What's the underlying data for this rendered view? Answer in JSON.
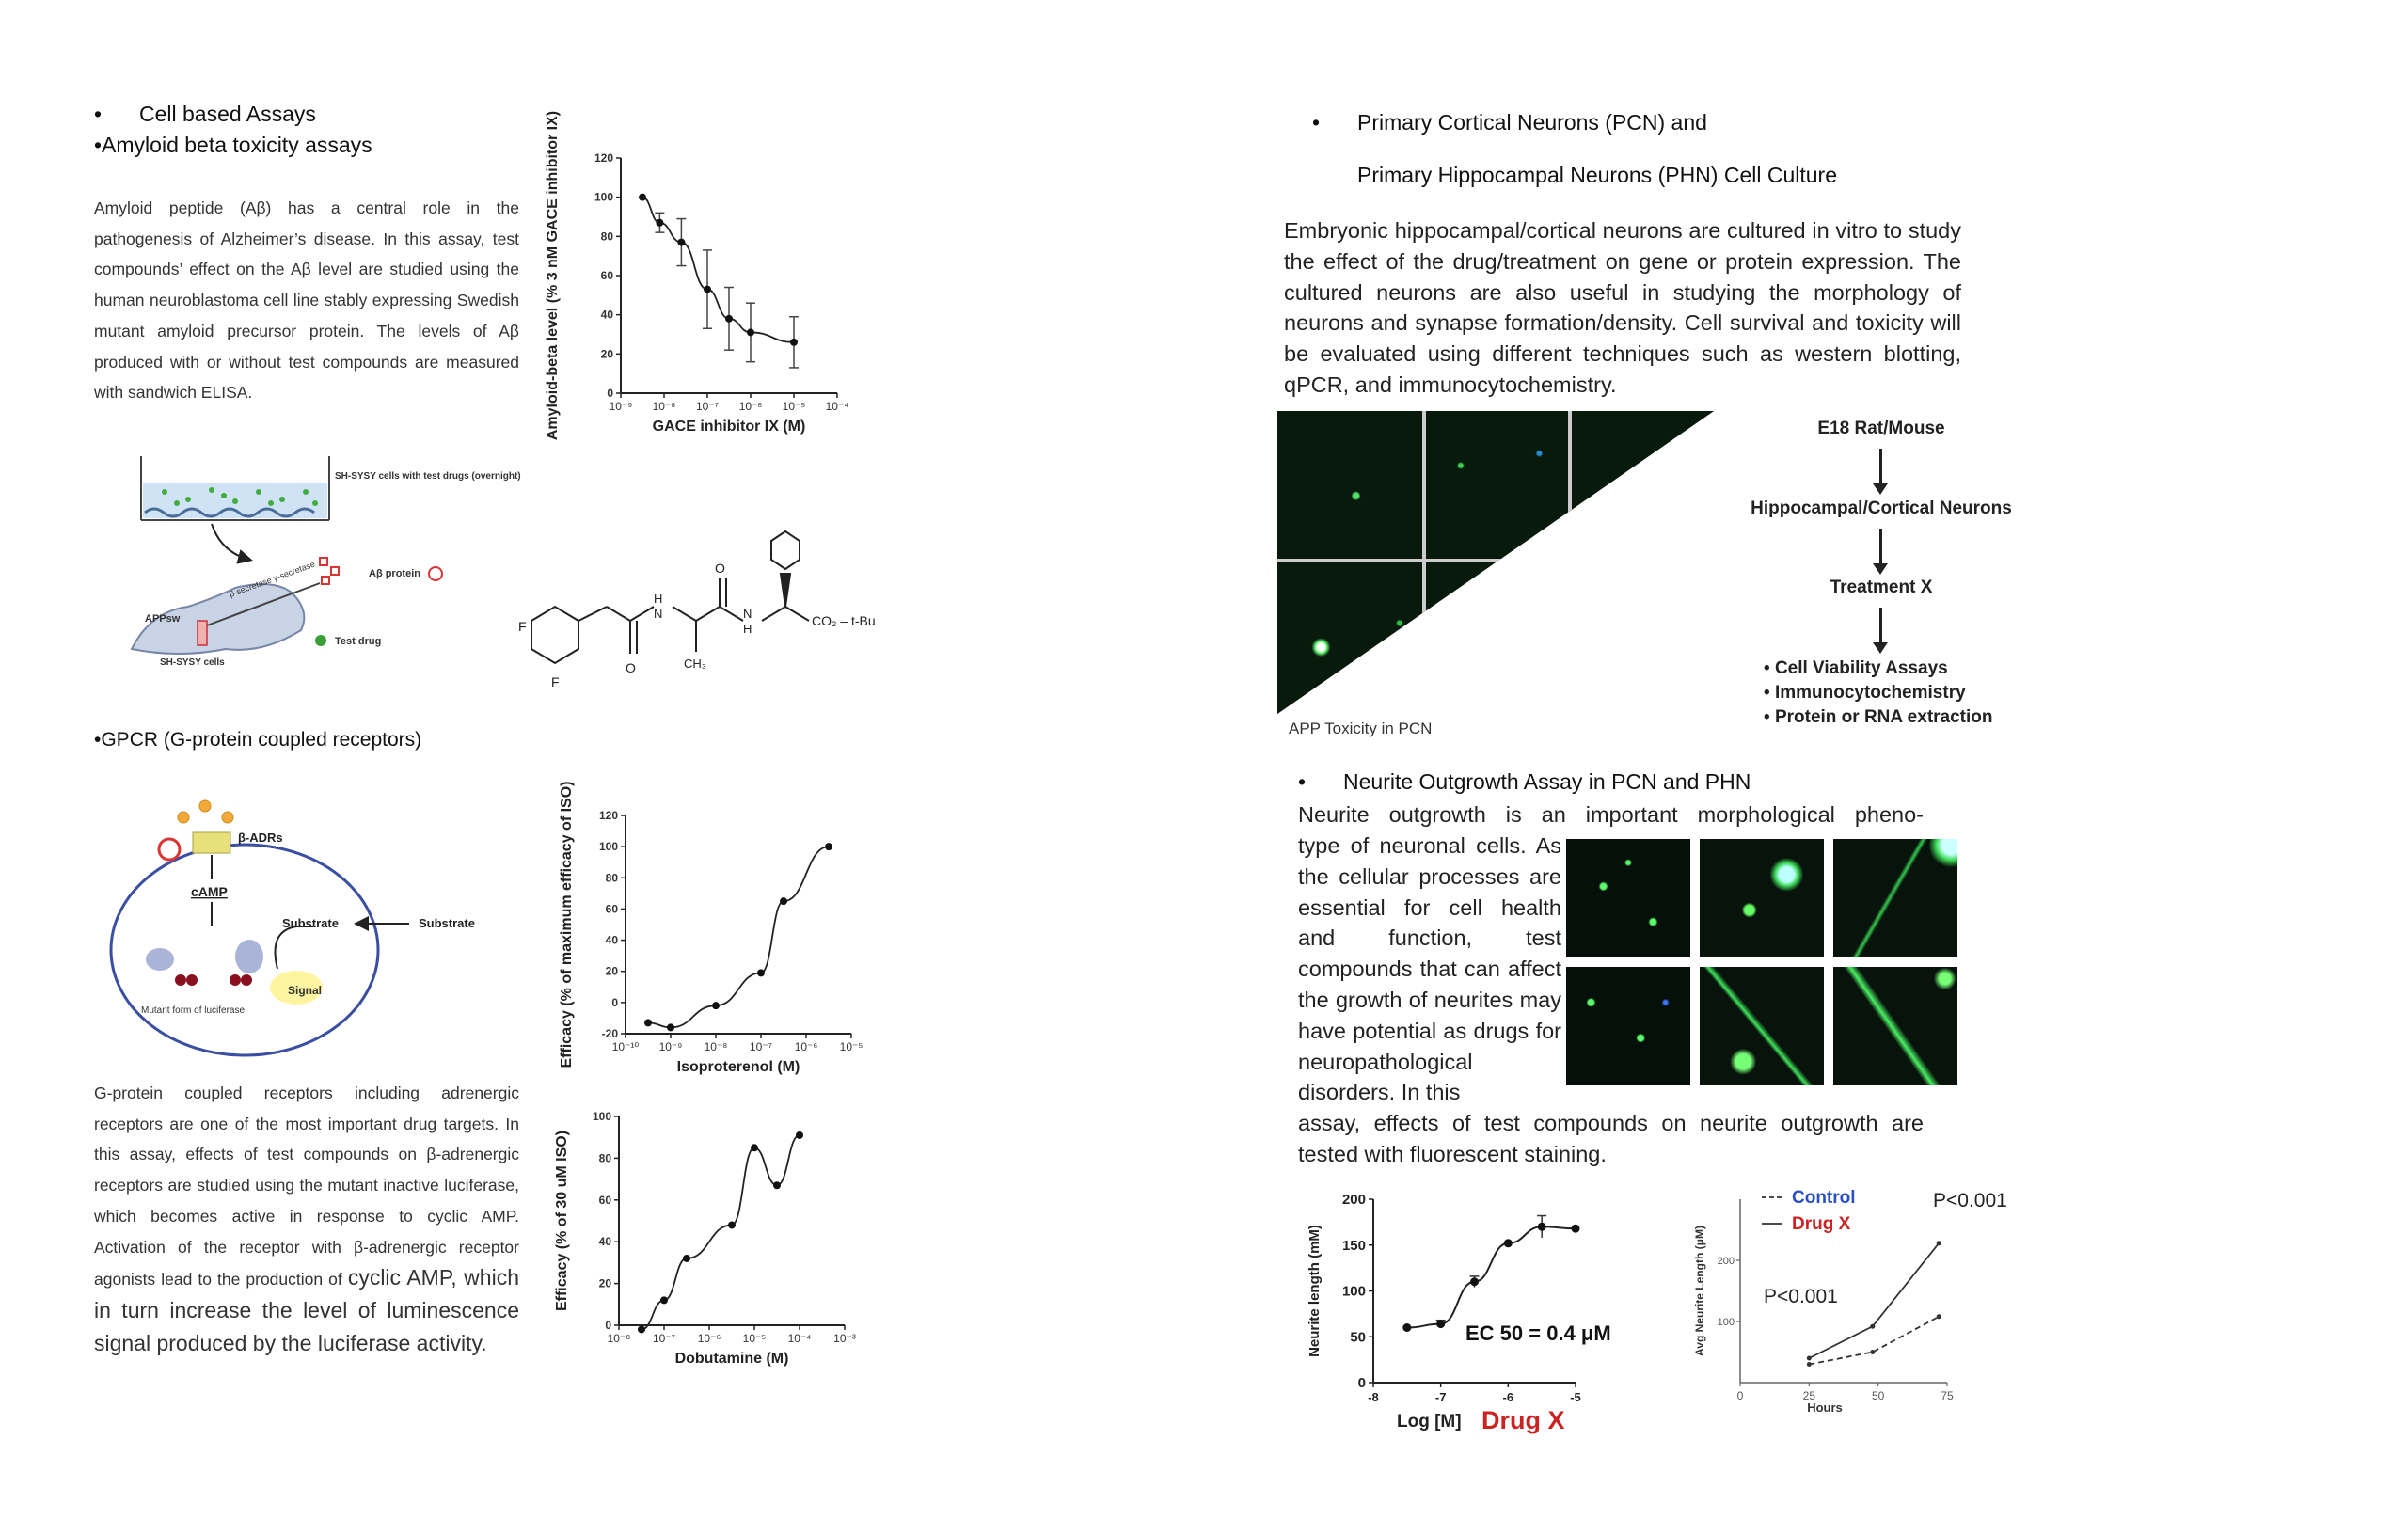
{
  "left": {
    "bullet1": "Cell based Assays",
    "bullet2": "•Amyloid beta toxicity assays",
    "amyloid_para": "Amyloid peptide (Aβ) has a central role in the pathogenesis of Alzheimer’s disease. In this assay, test compounds’ effect on the Aβ level are studied using the human neuroblastoma cell line stably expressing Swedish mutant amyloid precursor protein. The levels of Aβ produced with or without test compounds are measured with sandwich ELISA.",
    "gpcr_heading": "•GPCR (G-protein coupled receptors)",
    "gpcr_para_small": "G-protein coupled receptors including adrenergic receptors are one of the most important drug targets. In this assay, effects of test compounds on β-adrenergic receptors are studied using the mutant inactive luciferase, which becomes active in response to cyclic AMP. Activation of the receptor with β-adrenergic receptor agonists lead to the production of",
    "gpcr_para_large": "cyclic AMP, which in turn increase the level of luminescence signal produced by the luciferase activity."
  },
  "amyloid_diagram": {
    "cells_label": "SH-SYSY cells with test drugs (overnight)",
    "ab_protein": "Aβ protein",
    "secretase": "β-secretase γ-secretase",
    "appsw": "APPsw",
    "test_drug": "Test drug",
    "cell_name": "SH-SYSY cells"
  },
  "structure": {
    "f1": "F",
    "f2": "F",
    "nh1": "H\nN",
    "o1": "O",
    "ch3": "CH₃",
    "o2": "O",
    "nh2": "N\nH",
    "ester": "CO₂ – t-Bu"
  },
  "gpcr_diagram": {
    "receptor": "β-ADRs",
    "camp": "cAMP",
    "substrate_in": "Substrate",
    "substrate_out": "Substrate",
    "signal": "Signal",
    "luciferase": "Mutant form of luciferase"
  },
  "right": {
    "pcn_line1": "Primary Cortical Neurons (PCN) and",
    "pcn_line2": "Primary Hippocampal Neurons (PHN) Cell Culture",
    "pcn_para": "Embryonic hippocampal/cortical neurons are cultured in vitro to study the effect of the drug/treatment on gene or protein expression. The cultured neurons are also useful in studying the morphology of neurons and synapse formation/density. Cell survival and toxicity will be evaluated using different techniques such as western blotting, qPCR, and immunocytochemistry.",
    "micro_caption": "APP Toxicity in PCN",
    "flow": [
      "E18 Rat/Mouse",
      "Hippocampal/Cortical Neurons",
      "Treatment X"
    ],
    "flow_bullets": [
      "Cell Viability Assays",
      "Immunocytochemistry",
      "Protein or RNA extraction"
    ],
    "neurite_heading": "Neurite Outgrowth Assay in PCN and PHN",
    "neurite_para_top": "Neurite outgrowth is an important morphological pheno-",
    "neurite_para_side": "type of neuronal cells. As the cellular processes are essential for cell health and function, test compounds that can affect the growth of neurites may have potential as drugs for neuropathological disorders. In this",
    "neurite_para_bottom": "assay, effects of test compounds on neurite outgrowth are tested with fluorescent staining."
  },
  "chart_data": [
    {
      "type": "scatter",
      "name": "amyloid",
      "xlabel": "GACE inhibitor IX (M)",
      "ylabel": "Amyloid-beta level (% 3 nM GACE inhibitor IX)",
      "xscale": "log",
      "xlim": [
        -9,
        -4
      ],
      "ylim": [
        0,
        120
      ],
      "yticks": [
        "0",
        "20",
        "40",
        "60",
        "80",
        "100",
        "120"
      ],
      "xticks": [
        "10⁻⁹",
        "10⁻⁸",
        "10⁻⁷",
        "10⁻⁶",
        "10⁻⁵",
        "10⁻⁴"
      ],
      "x": [
        -8.5,
        -8.1,
        -7.6,
        -7.0,
        -6.5,
        -6.0,
        -5.0
      ],
      "y": [
        100,
        87,
        77,
        53,
        38,
        31,
        26
      ],
      "err": [
        0,
        5,
        12,
        20,
        16,
        15,
        13
      ],
      "grid": false
    },
    {
      "type": "scatter",
      "name": "isoproterenol",
      "xlabel": "Isoproterenol (M)",
      "ylabel": "Efficacy (% of maximum efficacy of ISO)",
      "xscale": "log",
      "xlim": [
        -10,
        -5
      ],
      "ylim": [
        -20,
        120
      ],
      "yticks": [
        "-20",
        "0",
        "20",
        "40",
        "60",
        "80",
        "100",
        "120"
      ],
      "xticks": [
        "10⁻¹⁰",
        "10⁻⁹",
        "10⁻⁸",
        "10⁻⁷",
        "10⁻⁶",
        "10⁻⁵"
      ],
      "x": [
        -9.5,
        -9.0,
        -8.0,
        -7.0,
        -6.5,
        -5.5
      ],
      "y": [
        -13,
        -16,
        -2,
        19,
        65,
        100
      ],
      "grid": false
    },
    {
      "type": "scatter",
      "name": "dobutamine",
      "xlabel": "Dobutamine (M)",
      "ylabel": "Efficacy (% of 30 uM ISO)",
      "xscale": "log",
      "xlim": [
        -8,
        -3
      ],
      "ylim": [
        0,
        100
      ],
      "yticks": [
        "0",
        "20",
        "40",
        "60",
        "80",
        "100"
      ],
      "xticks": [
        "10⁻⁸",
        "10⁻⁷",
        "10⁻⁶",
        "10⁻⁵",
        "10⁻⁴",
        "10⁻³"
      ],
      "x": [
        -7.5,
        -7.0,
        -6.5,
        -5.5,
        -5.0,
        -4.5,
        -4.0
      ],
      "y": [
        -2,
        12,
        32,
        48,
        85,
        67,
        91
      ],
      "grid": false
    },
    {
      "type": "scatter",
      "name": "neurite_ec50",
      "xlabel": "Log [M]",
      "xlabel_drug": "Drug X",
      "ylabel": "Neurite length (mM)",
      "annotation": "EC 50 = 0.4 μM",
      "xlim": [
        -8,
        -5
      ],
      "ylim": [
        0,
        200
      ],
      "yticks": [
        "0",
        "50",
        "100",
        "150",
        "200"
      ],
      "xticks": [
        "-8",
        "-7",
        "-6",
        "-5"
      ],
      "x": [
        -7.5,
        -7.0,
        -6.5,
        -6.0,
        -5.5,
        -5.0
      ],
      "y": [
        60,
        64,
        110,
        152,
        170,
        168
      ],
      "err": [
        0,
        4,
        6,
        0,
        12,
        0
      ],
      "grid": false
    },
    {
      "type": "line",
      "name": "neurite_time",
      "xlabel": "Hours",
      "ylabel": "Avg Neurite Length (μM)",
      "xlim": [
        0,
        75
      ],
      "ylim": [
        0,
        300
      ],
      "xticks": [
        "0",
        "25",
        "50",
        "75"
      ],
      "yticks": [
        "100",
        "200"
      ],
      "annotations": [
        "P<0.001",
        "P<0.001"
      ],
      "series": [
        {
          "name": "Control",
          "x": [
            25,
            48,
            72
          ],
          "y": [
            30,
            50,
            108
          ],
          "color": "#2b4fc4"
        },
        {
          "name": "Drug X",
          "x": [
            25,
            48,
            72
          ],
          "y": [
            40,
            92,
            228
          ],
          "color": "#cc2222"
        }
      ],
      "legend": "top-left"
    }
  ]
}
